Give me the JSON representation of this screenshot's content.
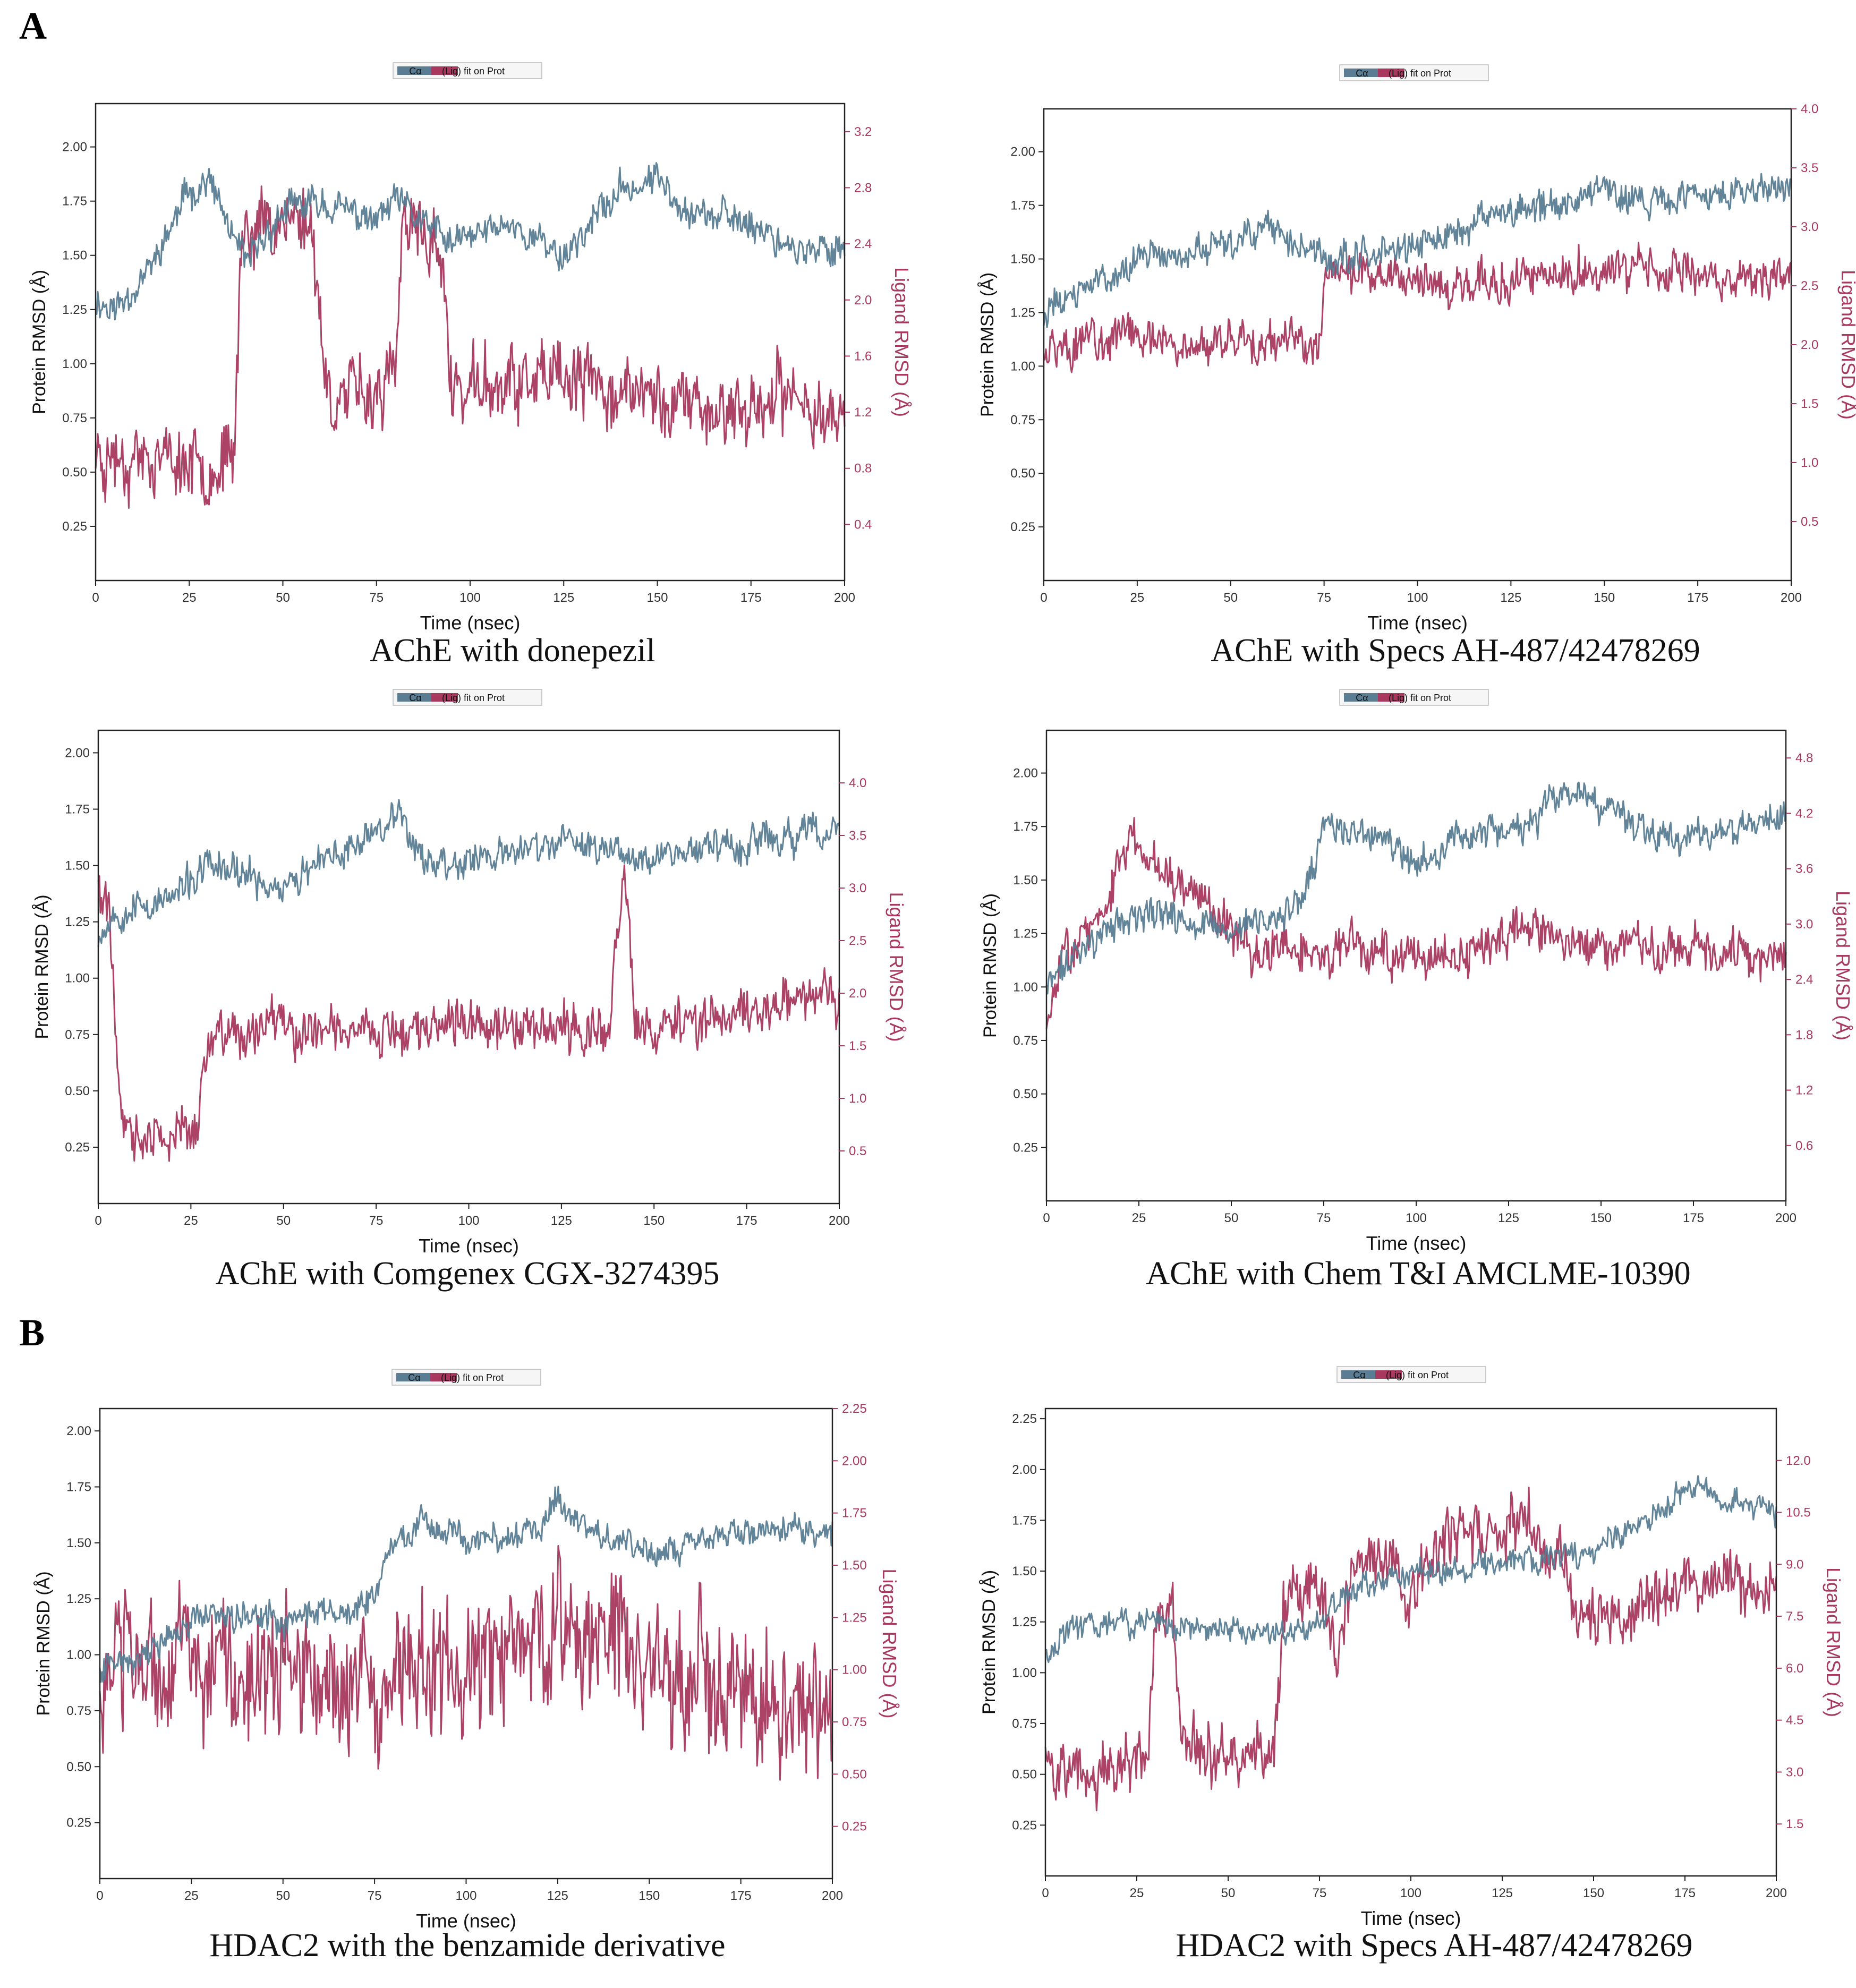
{
  "panel_labels": {
    "a": "A",
    "b": "B"
  },
  "colors": {
    "protein": "#5a7d94",
    "ligand": "#a8385e",
    "axis": "#222222",
    "ligand_text": "#a8385e"
  },
  "legend": {
    "protein": "Cα",
    "ligand": "(Lig) fit on Prot"
  },
  "chart_data": [
    {
      "id": "ache-donepezil",
      "type": "line",
      "caption": "AChE with donepezil",
      "xlabel": "Time (nsec)",
      "ylabel": "Protein RMSD (Å)",
      "y2label": "Ligand RMSD (Å)",
      "xlim": [
        0,
        200
      ],
      "xticks": [
        0,
        25,
        50,
        75,
        100,
        125,
        150,
        175,
        200
      ],
      "ylim": [
        0,
        2.2
      ],
      "yticks": [
        "0.25",
        "0.50",
        "0.75",
        "1.00",
        "1.25",
        "1.50",
        "1.75",
        "2.00"
      ],
      "y2lim": [
        0,
        3.4
      ],
      "y2ticks": [
        "0.4",
        "0.8",
        "1.2",
        "1.6",
        "2.0",
        "2.4",
        "2.8",
        "3.2"
      ],
      "series": [
        {
          "name": "Cα",
          "axis": "left",
          "noise": 0.07,
          "seed": 11,
          "x": [
            0,
            5,
            15,
            25,
            30,
            40,
            50,
            60,
            75,
            80,
            95,
            110,
            125,
            140,
            150,
            160,
            175,
            190,
            200
          ],
          "y": [
            1.3,
            1.25,
            1.45,
            1.8,
            1.85,
            1.45,
            1.7,
            1.75,
            1.65,
            1.75,
            1.55,
            1.65,
            1.5,
            1.8,
            1.85,
            1.7,
            1.65,
            1.5,
            1.55
          ]
        },
        {
          "name": "Lig fit on Prot",
          "axis": "right",
          "noise": 0.23,
          "seed": 23,
          "x": [
            0,
            10,
            20,
            30,
            37,
            39,
            45,
            55,
            58,
            62,
            75,
            80,
            82,
            92,
            95,
            110,
            130,
            150,
            170,
            185,
            200
          ],
          "y": [
            0.9,
            0.9,
            0.85,
            0.85,
            0.85,
            2.5,
            2.55,
            2.6,
            2.5,
            1.3,
            1.35,
            1.45,
            2.5,
            2.4,
            1.35,
            1.4,
            1.4,
            1.3,
            1.2,
            1.3,
            1.2
          ]
        }
      ]
    },
    {
      "id": "ache-specs",
      "type": "line",
      "caption": "AChE with Specs AH-487/42478269",
      "xlabel": "Time (nsec)",
      "ylabel": "Protein RMSD (Å)",
      "y2label": "Ligand RMSD (Å)",
      "xlim": [
        0,
        200
      ],
      "xticks": [
        0,
        25,
        50,
        75,
        100,
        125,
        150,
        175,
        200
      ],
      "ylim": [
        0,
        2.2
      ],
      "yticks": [
        "0.25",
        "0.50",
        "0.75",
        "1.00",
        "1.25",
        "1.50",
        "1.75",
        "2.00"
      ],
      "y2lim": [
        0,
        4.0
      ],
      "y2ticks": [
        "0.5",
        "1.0",
        "1.5",
        "2.0",
        "2.5",
        "3.0",
        "3.5",
        "4.0"
      ],
      "series": [
        {
          "name": "Cα",
          "axis": "left",
          "noise": 0.07,
          "seed": 31,
          "x": [
            0,
            10,
            25,
            50,
            60,
            75,
            90,
            100,
            120,
            135,
            150,
            165,
            180,
            200
          ],
          "y": [
            1.25,
            1.35,
            1.5,
            1.55,
            1.65,
            1.5,
            1.55,
            1.55,
            1.7,
            1.75,
            1.85,
            1.75,
            1.8,
            1.85
          ]
        },
        {
          "name": "Lig fit on Prot",
          "axis": "right",
          "noise": 0.17,
          "seed": 43,
          "x": [
            0,
            20,
            40,
            60,
            74,
            75,
            90,
            110,
            130,
            150,
            175,
            200
          ],
          "y": [
            2.0,
            2.05,
            2.0,
            2.0,
            2.0,
            2.6,
            2.6,
            2.5,
            2.55,
            2.65,
            2.6,
            2.55
          ]
        }
      ]
    },
    {
      "id": "ache-comgenex",
      "type": "line",
      "caption": "AChE with Comgenex CGX-3274395",
      "xlabel": "Time (nsec)",
      "ylabel": "Protein RMSD (Å)",
      "y2label": "Ligand RMSD (Å)",
      "xlim": [
        0,
        200
      ],
      "xticks": [
        0,
        25,
        50,
        75,
        100,
        125,
        150,
        175,
        200
      ],
      "ylim": [
        0,
        2.1
      ],
      "yticks": [
        "0.25",
        "0.50",
        "0.75",
        "1.00",
        "1.25",
        "1.50",
        "1.75",
        "2.00"
      ],
      "y2lim": [
        0,
        4.5
      ],
      "y2ticks": [
        "0.5",
        "1.0",
        "1.5",
        "2.0",
        "2.5",
        "3.0",
        "3.5",
        "4.0"
      ],
      "series": [
        {
          "name": "Cα",
          "axis": "left",
          "noise": 0.07,
          "seed": 53,
          "x": [
            0,
            5,
            20,
            30,
            50,
            70,
            80,
            90,
            110,
            125,
            150,
            175,
            200
          ],
          "y": [
            1.2,
            1.3,
            1.35,
            1.5,
            1.4,
            1.6,
            1.75,
            1.5,
            1.55,
            1.6,
            1.55,
            1.6,
            1.65
          ]
        },
        {
          "name": "Lig fit on Prot",
          "axis": "right",
          "noise": 0.22,
          "seed": 61,
          "x": [
            0,
            3,
            6,
            8,
            20,
            27,
            30,
            50,
            75,
            100,
            125,
            138,
            142,
            145,
            160,
            180,
            200
          ],
          "y": [
            3.0,
            2.8,
            0.8,
            0.6,
            0.6,
            0.7,
            1.6,
            1.65,
            1.65,
            1.7,
            1.65,
            1.7,
            3.2,
            1.7,
            1.7,
            1.85,
            2.05
          ]
        }
      ]
    },
    {
      "id": "ache-chemti",
      "type": "line",
      "caption": "AChE with Chem T&I AMCLME-10390",
      "xlabel": "Time (nsec)",
      "ylabel": "Protein RMSD (Å)",
      "y2label": "Ligand RMSD (Å)",
      "xlim": [
        0,
        200
      ],
      "xticks": [
        0,
        25,
        50,
        75,
        100,
        125,
        150,
        175,
        200
      ],
      "ylim": [
        0,
        2.2
      ],
      "yticks": [
        "0.25",
        "0.50",
        "0.75",
        "1.00",
        "1.25",
        "1.50",
        "1.75",
        "2.00"
      ],
      "y2lim": [
        0,
        5.1
      ],
      "y2ticks": [
        "0.6",
        "1.2",
        "1.8",
        "2.4",
        "3.0",
        "3.6",
        "4.2",
        "4.8"
      ],
      "series": [
        {
          "name": "Cα",
          "axis": "left",
          "noise": 0.07,
          "seed": 71,
          "x": [
            0,
            10,
            20,
            30,
            50,
            65,
            70,
            75,
            90,
            100,
            110,
            130,
            140,
            155,
            170,
            185,
            200
          ],
          "y": [
            1.0,
            1.2,
            1.3,
            1.35,
            1.25,
            1.35,
            1.4,
            1.75,
            1.7,
            1.55,
            1.7,
            1.75,
            1.9,
            1.8,
            1.7,
            1.75,
            1.8
          ]
        },
        {
          "name": "Lig fit on Prot",
          "axis": "right",
          "noise": 0.22,
          "seed": 83,
          "x": [
            0,
            5,
            15,
            22,
            30,
            45,
            55,
            75,
            100,
            110,
            130,
            150,
            175,
            200
          ],
          "y": [
            1.8,
            2.8,
            3.0,
            3.9,
            3.7,
            3.2,
            2.7,
            2.7,
            2.7,
            2.5,
            3.0,
            2.7,
            2.8,
            2.6
          ]
        }
      ]
    },
    {
      "id": "hdac2-benzamide",
      "type": "line",
      "caption": "HDAC2 with the benzamide derivative",
      "xlabel": "Time (nsec)",
      "ylabel": "Protein RMSD (Å)",
      "y2label": "Ligand RMSD (Å)",
      "xlim": [
        0,
        200
      ],
      "xticks": [
        0,
        25,
        50,
        75,
        100,
        125,
        150,
        175,
        200
      ],
      "ylim": [
        0,
        2.1
      ],
      "yticks": [
        "0.25",
        "0.50",
        "0.75",
        "1.00",
        "1.25",
        "1.50",
        "1.75",
        "2.00"
      ],
      "y2lim": [
        0,
        2.25
      ],
      "y2ticks": [
        "0.25",
        "0.50",
        "0.75",
        "1.00",
        "1.25",
        "1.50",
        "1.75",
        "2.00",
        "2.25"
      ],
      "series": [
        {
          "name": "Cα",
          "axis": "left",
          "noise": 0.06,
          "seed": 91,
          "x": [
            0,
            10,
            30,
            50,
            70,
            75,
            80,
            90,
            100,
            120,
            125,
            130,
            150,
            160,
            175,
            200
          ],
          "y": [
            0.95,
            1.0,
            1.2,
            1.15,
            1.2,
            1.3,
            1.5,
            1.6,
            1.5,
            1.55,
            1.7,
            1.6,
            1.45,
            1.5,
            1.55,
            1.55
          ]
        },
        {
          "name": "Lig fit on Prot",
          "axis": "right",
          "noise": 0.3,
          "seed": 103,
          "x": [
            0,
            25,
            50,
            75,
            100,
            125,
            150,
            175,
            200
          ],
          "y": [
            0.9,
            1.05,
            0.95,
            0.9,
            1.0,
            1.2,
            1.0,
            0.9,
            0.85
          ]
        }
      ]
    },
    {
      "id": "hdac2-specs",
      "type": "line",
      "caption": "HDAC2 with Specs AH-487/42478269",
      "xlabel": "Time (nsec)",
      "ylabel": "Protein RMSD (Å)",
      "y2label": "Ligand RMSD (Å)",
      "xlim": [
        0,
        200
      ],
      "xticks": [
        0,
        25,
        50,
        75,
        100,
        125,
        150,
        175,
        200
      ],
      "ylim": [
        0,
        2.3
      ],
      "yticks": [
        "0.25",
        "0.50",
        "0.75",
        "1.00",
        "1.25",
        "1.50",
        "1.75",
        "2.00",
        "2.25"
      ],
      "y2lim": [
        0,
        13.5
      ],
      "y2ticks": [
        "1.5",
        "3.0",
        "4.5",
        "6.0",
        "7.5",
        "9.0",
        "10.5",
        "12.0"
      ],
      "series": [
        {
          "name": "Cα",
          "axis": "left",
          "noise": 0.06,
          "seed": 113,
          "x": [
            0,
            10,
            30,
            50,
            70,
            80,
            90,
            110,
            130,
            150,
            165,
            175,
            190,
            200
          ],
          "y": [
            1.1,
            1.25,
            1.25,
            1.2,
            1.2,
            1.35,
            1.45,
            1.5,
            1.55,
            1.6,
            1.75,
            1.9,
            1.85,
            1.8
          ]
        },
        {
          "name": "Lig fit on Prot",
          "axis": "right",
          "noise": 0.8,
          "seed": 127,
          "x": [
            0,
            10,
            28,
            30,
            35,
            37,
            38,
            55,
            63,
            65,
            75,
            80,
            85,
            95,
            100,
            110,
            120,
            130,
            140,
            150,
            160,
            175,
            190,
            200
          ],
          "y": [
            3.5,
            3.0,
            3.3,
            7.5,
            8.0,
            3.5,
            3.5,
            3.5,
            3.5,
            8.0,
            8.5,
            6.0,
            9.5,
            9.0,
            8.0,
            10.0,
            9.5,
            10.5,
            9.0,
            7.0,
            7.5,
            8.5,
            8.5,
            8.5
          ]
        }
      ]
    }
  ]
}
